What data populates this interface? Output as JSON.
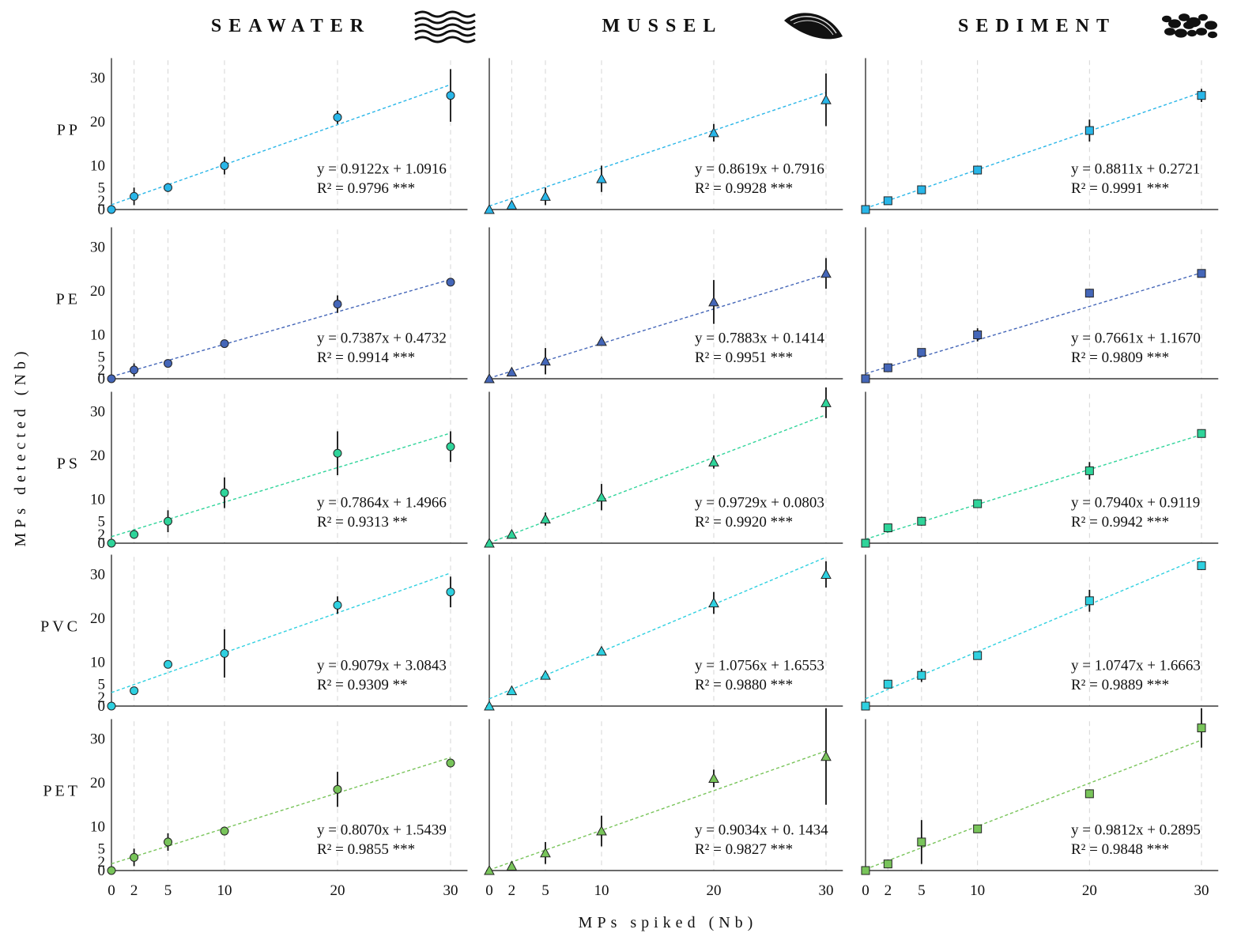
{
  "figure": {
    "x_axis_title": "MPs spiked (Nb)",
    "y_axis_title": "MPs detected (Nb)"
  },
  "chart_data": {
    "type": "scatter",
    "columns": [
      {
        "key": "seawater",
        "title": "SEAWATER",
        "icon": "waves-icon",
        "marker": "circle"
      },
      {
        "key": "mussel",
        "title": "MUSSEL",
        "icon": "mussel-shell-icon",
        "marker": "triangle"
      },
      {
        "key": "sediment",
        "title": "SEDIMENT",
        "icon": "sediment-grains-icon",
        "marker": "square"
      }
    ],
    "rows": [
      {
        "key": "PP",
        "label": "PP",
        "color": "#29b6e8"
      },
      {
        "key": "PE",
        "label": "PE",
        "color": "#4466b8"
      },
      {
        "key": "PS",
        "label": "PS",
        "color": "#2fd49a"
      },
      {
        "key": "PVC",
        "label": "PVC",
        "color": "#2ed0e0"
      },
      {
        "key": "PET",
        "label": "PET",
        "color": "#78c45a"
      }
    ],
    "x_values": [
      0,
      2,
      5,
      10,
      20,
      30
    ],
    "x_ticks": [
      0,
      2,
      5,
      10,
      20,
      30
    ],
    "y_ticks": [
      0,
      2,
      5,
      10,
      20,
      30
    ],
    "xlim": [
      0,
      31
    ],
    "ylim": [
      0,
      34
    ],
    "grid": "dashed vertical lines at x ticks",
    "panels": [
      {
        "row": "PP",
        "col": "seawater",
        "y": [
          0,
          3.0,
          5.0,
          10.0,
          21.0,
          26.0
        ],
        "err": [
          0,
          2.0,
          1.0,
          2.0,
          1.5,
          6.0
        ],
        "equation": "y = 0.9122x + 1.0916",
        "r2": "R² = 0.9796 ***",
        "slope": 0.9122,
        "intercept": 1.0916
      },
      {
        "row": "PP",
        "col": "mussel",
        "y": [
          0,
          1.0,
          3.0,
          7.0,
          17.5,
          25.0
        ],
        "err": [
          0,
          0.5,
          2.0,
          3.0,
          2.0,
          6.0
        ],
        "equation": "y = 0.8619x + 0.7916",
        "r2": "R² = 0.9928 ***",
        "slope": 0.8619,
        "intercept": 0.7916
      },
      {
        "row": "PP",
        "col": "sediment",
        "y": [
          0,
          2.0,
          4.5,
          9.0,
          18.0,
          26.0
        ],
        "err": [
          0,
          0.5,
          1.0,
          1.0,
          2.5,
          1.5
        ],
        "equation": "y = 0.8811x + 0.2721",
        "r2": "R² = 0.9991 ***",
        "slope": 0.8811,
        "intercept": 0.2721
      },
      {
        "row": "PE",
        "col": "seawater",
        "y": [
          0,
          2.0,
          3.5,
          8.0,
          17.0,
          22.0
        ],
        "err": [
          0,
          1.5,
          0.5,
          0.5,
          2.0,
          0.3
        ],
        "equation": "y = 0.7387x + 0.4732",
        "r2": "R² = 0.9914 ***",
        "slope": 0.7387,
        "intercept": 0.4732
      },
      {
        "row": "PE",
        "col": "mussel",
        "y": [
          0,
          1.5,
          4.0,
          8.5,
          17.5,
          24.0
        ],
        "err": [
          0,
          0.5,
          3.0,
          0.5,
          5.0,
          3.5
        ],
        "equation": "y = 0.7883x + 0.1414",
        "r2": "R² = 0.9951 ***",
        "slope": 0.7883,
        "intercept": 0.1414
      },
      {
        "row": "PE",
        "col": "sediment",
        "y": [
          0,
          2.5,
          6.0,
          10.0,
          19.5,
          24.0
        ],
        "err": [
          0,
          0.5,
          0.5,
          1.5,
          1.0,
          0.5
        ],
        "equation": "y = 0.7661x + 1.1670",
        "r2": "R² = 0.9809 ***",
        "slope": 0.7661,
        "intercept": 1.167
      },
      {
        "row": "PS",
        "col": "seawater",
        "y": [
          0,
          2.0,
          5.0,
          11.5,
          20.5,
          22.0
        ],
        "err": [
          0,
          1.0,
          2.5,
          3.5,
          5.0,
          3.5
        ],
        "equation": "y = 0.7864x + 1.4966",
        "r2": "R² = 0.9313 **",
        "slope": 0.7864,
        "intercept": 1.4966
      },
      {
        "row": "PS",
        "col": "mussel",
        "y": [
          0,
          2.0,
          5.5,
          10.5,
          18.5,
          32.0
        ],
        "err": [
          0,
          0.5,
          1.5,
          3.0,
          1.5,
          3.5
        ],
        "equation": "y = 0.9729x + 0.0803",
        "r2": "R² = 0.9920 ***",
        "slope": 0.9729,
        "intercept": 0.0803
      },
      {
        "row": "PS",
        "col": "sediment",
        "y": [
          0,
          3.5,
          5.0,
          9.0,
          16.5,
          25.0
        ],
        "err": [
          0,
          0.5,
          1.0,
          0.5,
          2.0,
          0.5
        ],
        "equation": "y = 0.7940x + 0.9119",
        "r2": "R² = 0.9942 ***",
        "slope": 0.794,
        "intercept": 0.9119
      },
      {
        "row": "PVC",
        "col": "seawater",
        "y": [
          0,
          3.5,
          9.5,
          12.0,
          23.0,
          26.0
        ],
        "err": [
          0,
          0.3,
          0.5,
          5.5,
          2.0,
          3.5
        ],
        "equation": "y = 0.9079x + 3.0843",
        "r2": "R² = 0.9309 **",
        "slope": 0.9079,
        "intercept": 3.0843
      },
      {
        "row": "PVC",
        "col": "mussel",
        "y": [
          0,
          3.5,
          7.0,
          12.5,
          23.5,
          30.0
        ],
        "err": [
          0,
          0.5,
          0.5,
          0.5,
          2.5,
          3.0
        ],
        "equation": "y = 1.0756x + 1.6553",
        "r2": "R² = 0.9880 ***",
        "slope": 1.0756,
        "intercept": 1.6553
      },
      {
        "row": "PVC",
        "col": "sediment",
        "y": [
          0,
          5.0,
          7.0,
          11.5,
          24.0,
          32.0
        ],
        "err": [
          0,
          0.5,
          1.5,
          0.5,
          2.5,
          1.0
        ],
        "equation": "y = 1.0747x + 1.6663",
        "r2": "R² = 0.9889 ***",
        "slope": 1.0747,
        "intercept": 1.6663
      },
      {
        "row": "PET",
        "col": "seawater",
        "y": [
          0,
          3.0,
          6.5,
          9.0,
          18.5,
          24.5
        ],
        "err": [
          0,
          2.0,
          2.0,
          1.0,
          4.0,
          1.0
        ],
        "equation": "y = 0.8070x + 1.5439",
        "r2": "R² = 0.9855 ***",
        "slope": 0.807,
        "intercept": 1.5439
      },
      {
        "row": "PET",
        "col": "mussel",
        "y": [
          0,
          1.0,
          4.0,
          9.0,
          21.0,
          26.0
        ],
        "err": [
          0,
          0.5,
          2.5,
          3.5,
          2.0,
          11.0
        ],
        "equation": "y = 0.9034x + 0. 1434",
        "r2": "R² = 0.9827 ***",
        "slope": 0.9034,
        "intercept": 0.1434
      },
      {
        "row": "PET",
        "col": "sediment",
        "y": [
          0,
          1.5,
          6.5,
          9.5,
          17.5,
          32.5
        ],
        "err": [
          0,
          1.0,
          5.0,
          0.5,
          1.0,
          4.5
        ],
        "equation": "y = 0.9812x + 0.2895",
        "r2": "R² = 0.9848 ***",
        "slope": 0.9812,
        "intercept": 0.2895
      }
    ]
  }
}
